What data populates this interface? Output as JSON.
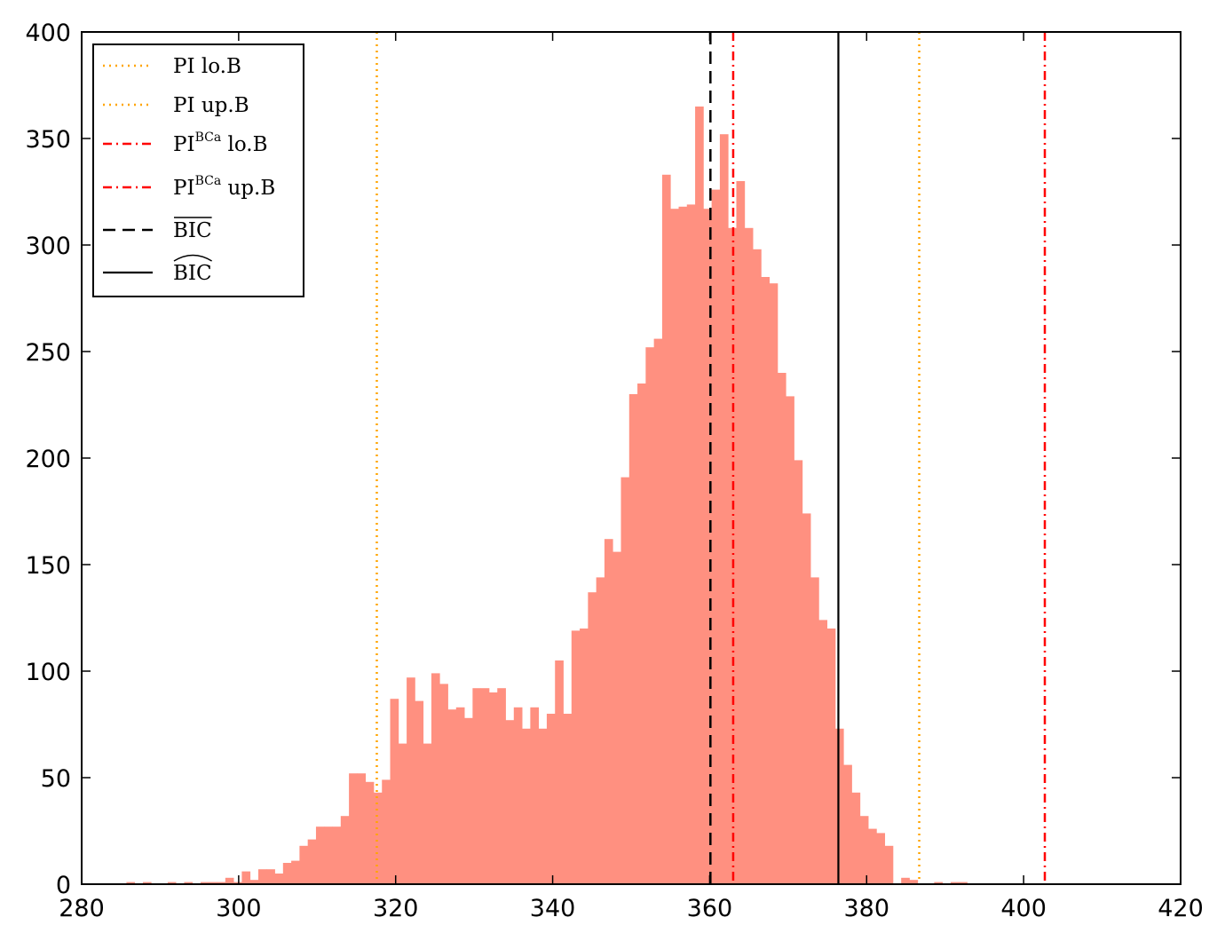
{
  "chart_data": {
    "type": "histogram",
    "title": "",
    "xlabel": "",
    "ylabel": "",
    "xlim": [
      280,
      420
    ],
    "ylim": [
      0,
      400
    ],
    "xticks": [
      280,
      300,
      320,
      340,
      360,
      380,
      400,
      420
    ],
    "yticks": [
      0,
      50,
      100,
      150,
      200,
      250,
      300,
      350,
      400
    ],
    "bar_color": "#ff9080",
    "bin_start": 285.7,
    "bin_width": 1.05,
    "counts": [
      1,
      0,
      1,
      0,
      0,
      1,
      0,
      1,
      0,
      1,
      1,
      1,
      3,
      1,
      6,
      2,
      7,
      7,
      5,
      10,
      11,
      18,
      21,
      27,
      27,
      27,
      32,
      52,
      52,
      48,
      43,
      49,
      87,
      66,
      97,
      86,
      66,
      99,
      94,
      82,
      83,
      78,
      92,
      92,
      90,
      92,
      77,
      83,
      73,
      83,
      73,
      80,
      105,
      80,
      119,
      120,
      137,
      144,
      162,
      156,
      191,
      230,
      235,
      252,
      256,
      333,
      317,
      318,
      319,
      365,
      317,
      326,
      352,
      308,
      330,
      308,
      298,
      285,
      282,
      240,
      229,
      199,
      174,
      144,
      124,
      120,
      73,
      56,
      43,
      32,
      26,
      24,
      18,
      0,
      3,
      2,
      0,
      0,
      1,
      0,
      1,
      1
    ],
    "vlines": [
      {
        "key": "pi_lo",
        "x": 317.6,
        "color": "#ffa500",
        "style": "dotted"
      },
      {
        "key": "pi_up",
        "x": 386.7,
        "color": "#ffa500",
        "style": "dotted"
      },
      {
        "key": "bca_lo",
        "x": 363.0,
        "color": "#ff0000",
        "style": "dashdot"
      },
      {
        "key": "bca_up",
        "x": 402.7,
        "color": "#ff0000",
        "style": "dashdot"
      },
      {
        "key": "bic_bar",
        "x": 360.1,
        "color": "#000000",
        "style": "dashed"
      },
      {
        "key": "bic_hat",
        "x": 376.4,
        "color": "#000000",
        "style": "solid"
      }
    ],
    "legend": {
      "position": "top-left",
      "entries": [
        {
          "key": "pi_lo",
          "base": "PI lo.B",
          "sup": "",
          "suffix": "",
          "accent": ""
        },
        {
          "key": "pi_up",
          "base": "PI up.B",
          "sup": "",
          "suffix": "",
          "accent": ""
        },
        {
          "key": "bca_lo",
          "base": "PI",
          "sup": "BCa",
          "suffix": " lo.B",
          "accent": ""
        },
        {
          "key": "bca_up",
          "base": "PI",
          "sup": "BCa",
          "suffix": " up.B",
          "accent": ""
        },
        {
          "key": "bic_bar",
          "base": "BIC",
          "sup": "",
          "suffix": "",
          "accent": "bar"
        },
        {
          "key": "bic_hat",
          "base": "BIC",
          "sup": "",
          "suffix": "",
          "accent": "hat"
        }
      ]
    }
  }
}
